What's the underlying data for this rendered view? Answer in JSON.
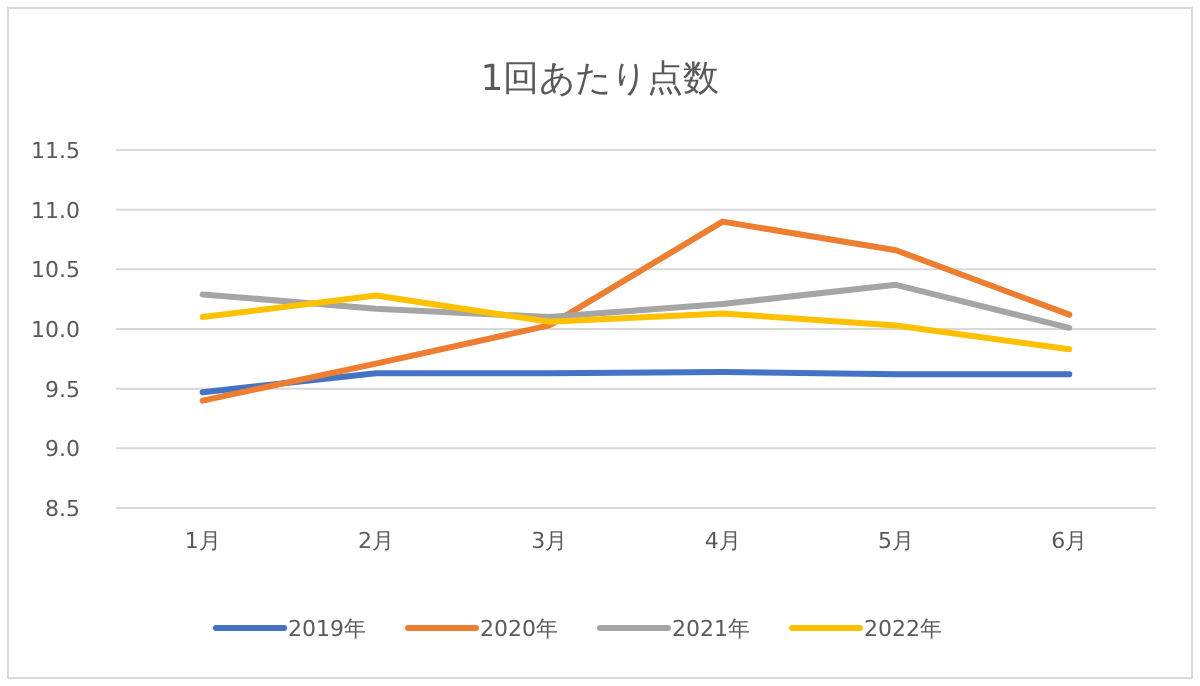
{
  "chart_data": {
    "type": "line",
    "title": "1回あたり点数",
    "categories": [
      "1月",
      "2月",
      "3月",
      "4月",
      "5月",
      "6月"
    ],
    "series": [
      {
        "name": "2019年",
        "color": "#4472c4",
        "values": [
          9.47,
          9.63,
          9.63,
          9.64,
          9.62,
          9.62
        ]
      },
      {
        "name": "2020年",
        "color": "#ed7d31",
        "values": [
          9.4,
          9.71,
          10.03,
          10.9,
          10.66,
          10.12
        ]
      },
      {
        "name": "2021年",
        "color": "#a5a5a5",
        "values": [
          10.29,
          10.17,
          10.1,
          10.21,
          10.37,
          10.01
        ]
      },
      {
        "name": "2022年",
        "color": "#ffc000",
        "values": [
          10.1,
          10.28,
          10.06,
          10.13,
          10.03,
          9.83
        ]
      }
    ],
    "ylim": [
      8.5,
      11.5
    ],
    "yticks": [
      {
        "value": 8.5,
        "label": "8.5"
      },
      {
        "value": 9.0,
        "label": "9.0"
      },
      {
        "value": 9.5,
        "label": "9.5"
      },
      {
        "value": 10.0,
        "label": "10.0"
      },
      {
        "value": 10.5,
        "label": "10.5"
      },
      {
        "value": 11.0,
        "label": "11.0"
      },
      {
        "value": 11.5,
        "label": "11.5"
      }
    ],
    "grid": "y",
    "legend": "bottom",
    "marker": "none",
    "line_style": "solid"
  }
}
